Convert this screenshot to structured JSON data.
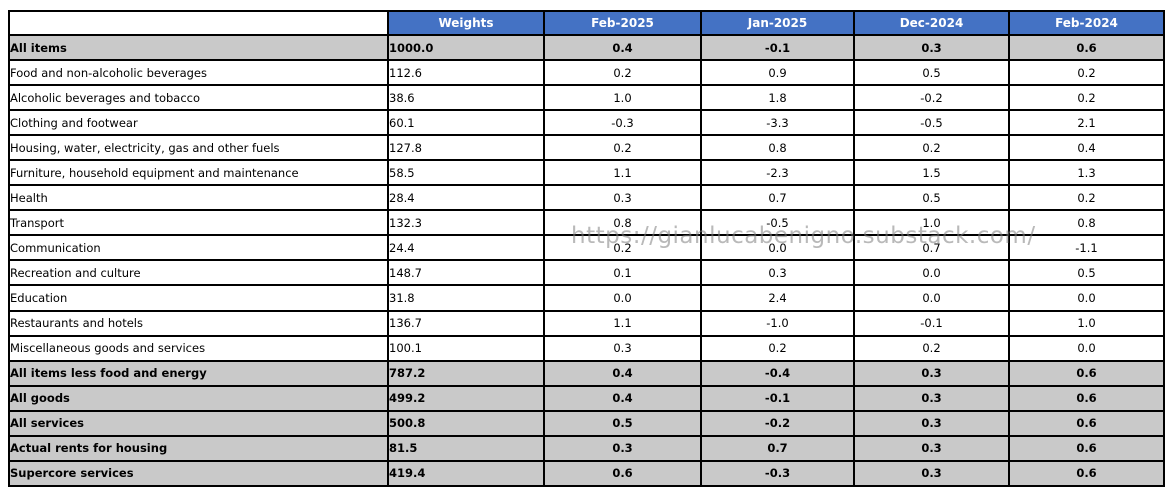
{
  "watermark": "https://gianlucabenigno.substack.com/",
  "colors": {
    "header_bg": "#4472C4",
    "header_text": "#ffffff",
    "summary_row_bg": "#C9C9C9",
    "normal_row_bg": "#ffffff",
    "border": "#000000",
    "watermark_text": "#808080"
  },
  "chart_data": {
    "type": "table",
    "columns": [
      "Weights",
      "Feb-2025",
      "Jan-2025",
      "Dec-2024",
      "Feb-2024"
    ],
    "rows": [
      {
        "label": "All items",
        "bold": true,
        "values": [
          "1000.0",
          "0.4",
          "-0.1",
          "0.3",
          "0.6"
        ]
      },
      {
        "label": "Food and non-alcoholic beverages",
        "bold": false,
        "values": [
          "112.6",
          "0.2",
          "0.9",
          "0.5",
          "0.2"
        ]
      },
      {
        "label": "Alcoholic beverages and tobacco",
        "bold": false,
        "values": [
          "38.6",
          "1.0",
          "1.8",
          "-0.2",
          "0.2"
        ]
      },
      {
        "label": "Clothing and footwear",
        "bold": false,
        "values": [
          "60.1",
          "-0.3",
          "-3.3",
          "-0.5",
          "2.1"
        ]
      },
      {
        "label": "Housing, water, electricity, gas and other fuels",
        "bold": false,
        "values": [
          "127.8",
          "0.2",
          "0.8",
          "0.2",
          "0.4"
        ]
      },
      {
        "label": "Furniture, household equipment and maintenance",
        "bold": false,
        "values": [
          "58.5",
          "1.1",
          "-2.3",
          "1.5",
          "1.3"
        ]
      },
      {
        "label": "Health",
        "bold": false,
        "values": [
          "28.4",
          "0.3",
          "0.7",
          "0.5",
          "0.2"
        ]
      },
      {
        "label": "Transport",
        "bold": false,
        "values": [
          "132.3",
          "0.8",
          "-0.5",
          "1.0",
          "0.8"
        ]
      },
      {
        "label": "Communication",
        "bold": false,
        "values": [
          "24.4",
          "0.2",
          "0.0",
          "0.7",
          "-1.1"
        ]
      },
      {
        "label": "Recreation and culture",
        "bold": false,
        "values": [
          "148.7",
          "0.1",
          "0.3",
          "0.0",
          "0.5"
        ]
      },
      {
        "label": "Education",
        "bold": false,
        "values": [
          "31.8",
          "0.0",
          "2.4",
          "0.0",
          "0.0"
        ]
      },
      {
        "label": "Restaurants and hotels",
        "bold": false,
        "values": [
          "136.7",
          "1.1",
          "-1.0",
          "-0.1",
          "1.0"
        ]
      },
      {
        "label": "Miscellaneous goods and services",
        "bold": false,
        "values": [
          "100.1",
          "0.3",
          "0.2",
          "0.2",
          "0.0"
        ]
      },
      {
        "label": "All items less food and energy",
        "bold": true,
        "values": [
          "787.2",
          "0.4",
          "-0.4",
          "0.3",
          "0.6"
        ]
      },
      {
        "label": "All goods",
        "bold": true,
        "values": [
          "499.2",
          "0.4",
          "-0.1",
          "0.3",
          "0.6"
        ]
      },
      {
        "label": "All services",
        "bold": true,
        "values": [
          "500.8",
          "0.5",
          "-0.2",
          "0.3",
          "0.6"
        ]
      },
      {
        "label": "Actual rents for housing",
        "bold": true,
        "values": [
          "81.5",
          "0.3",
          "0.7",
          "0.3",
          "0.6"
        ]
      },
      {
        "label": "Supercore services",
        "bold": true,
        "values": [
          "419.4",
          "0.6",
          "-0.3",
          "0.3",
          "0.6"
        ]
      }
    ]
  }
}
